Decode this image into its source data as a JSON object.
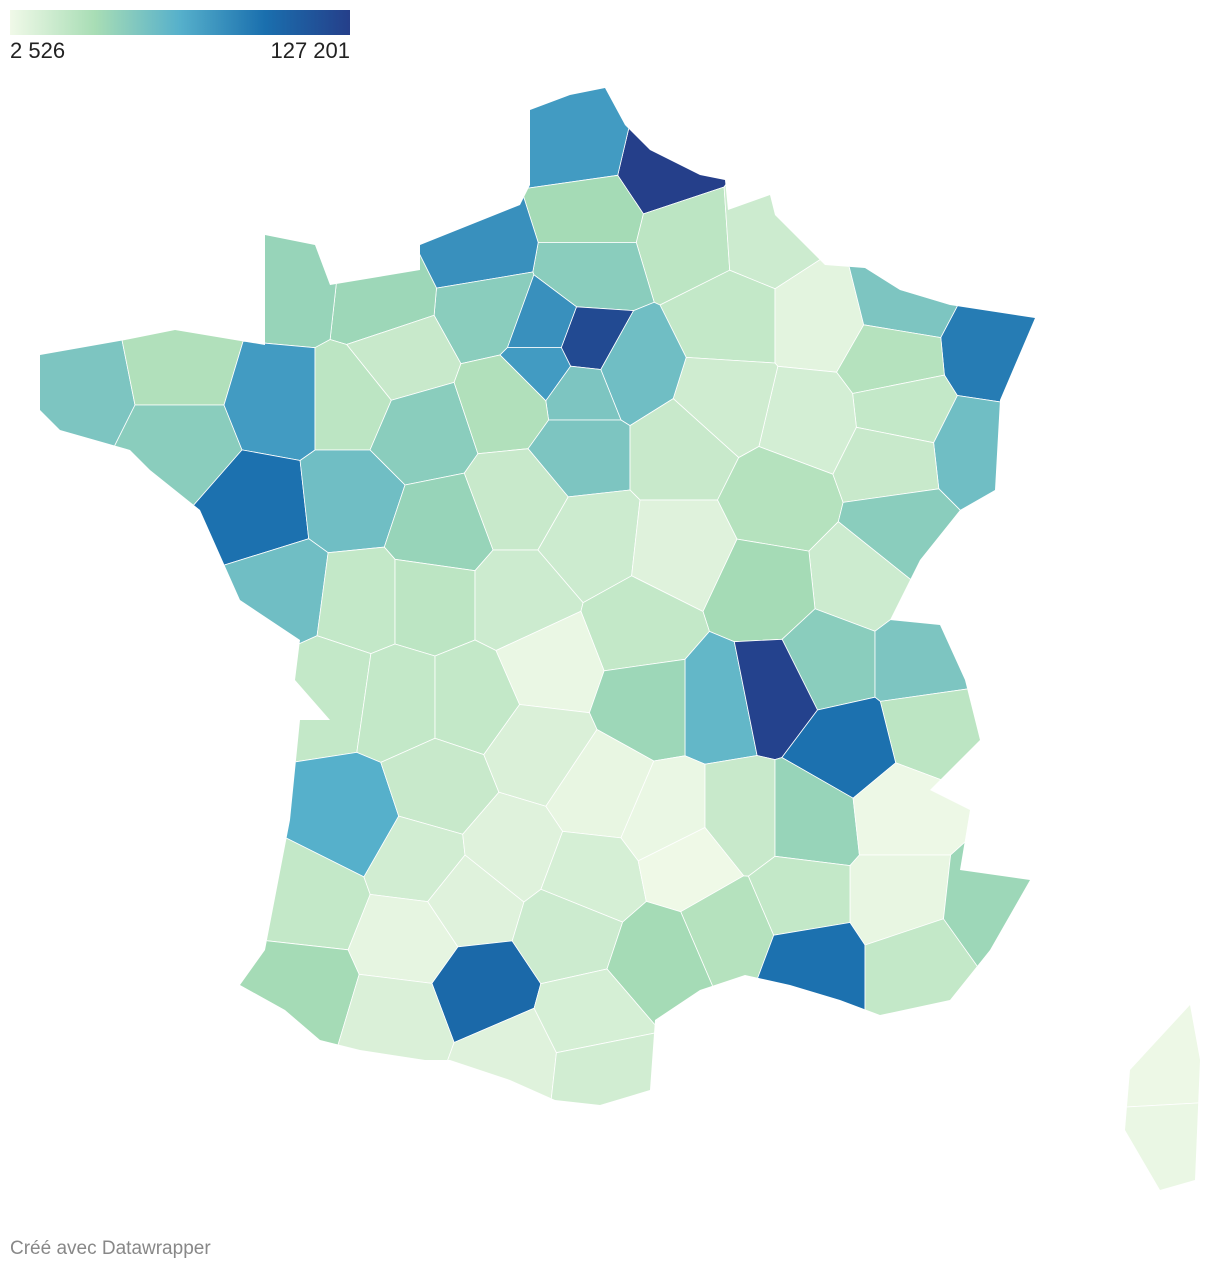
{
  "legend": {
    "min": {
      "value": 2526,
      "label": "2 526"
    },
    "max": {
      "value": 127201,
      "label": "127 201"
    },
    "colors": [
      "#f0f9e8",
      "#a8ddb5",
      "#56b0cb",
      "#1a6fae",
      "#253f8a"
    ]
  },
  "departments": [
    127000,
    75000,
    35000,
    25000,
    18000,
    22000,
    8000,
    50000,
    90000,
    55000,
    28000,
    22000,
    15000,
    17000,
    45000,
    80000,
    45000,
    38000,
    40000,
    20000,
    120000,
    80000,
    75000,
    55000,
    50000,
    50000,
    30000,
    45000,
    75000,
    95000,
    25000,
    45000,
    30000,
    50000,
    20000,
    28000,
    20000,
    45000,
    18000,
    55000,
    55000,
    40000,
    20000,
    18000,
    10000,
    35000,
    45000,
    50000,
    25000,
    22000,
    25000,
    18000,
    22000,
    60000,
    125000,
    95000,
    22000,
    22000,
    22000,
    5000,
    38000,
    65000,
    20000,
    12000,
    6000,
    5000,
    20000,
    40000,
    4000,
    6000,
    22000,
    16000,
    10000,
    14000,
    3000,
    28000,
    22000,
    95000,
    22000,
    38000,
    35000,
    7000,
    10000,
    100000,
    12000,
    18000,
    35000,
    10000,
    14000,
    16000,
    4000,
    5000
  ],
  "credit": "Créé avec Datawrapper"
}
